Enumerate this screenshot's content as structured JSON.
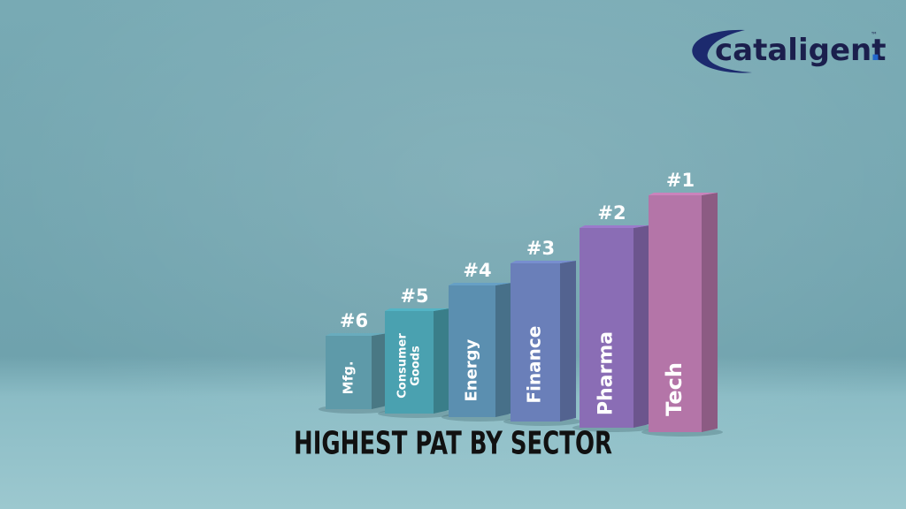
{
  "logo": {
    "text": "cataligent",
    "dot": ".",
    "trademark": "™"
  },
  "title": "HIGHEST PAT BY SECTOR",
  "bars": [
    {
      "rank": "#6",
      "sector": [
        "Mfg."
      ]
    },
    {
      "rank": "#5",
      "sector": [
        "Consumer",
        "Goods"
      ]
    },
    {
      "rank": "#4",
      "sector": [
        "Energy"
      ]
    },
    {
      "rank": "#3",
      "sector": [
        "Finance"
      ]
    },
    {
      "rank": "#2",
      "sector": [
        "Pharma"
      ]
    },
    {
      "rank": "#1",
      "sector": [
        "Tech"
      ]
    }
  ]
}
